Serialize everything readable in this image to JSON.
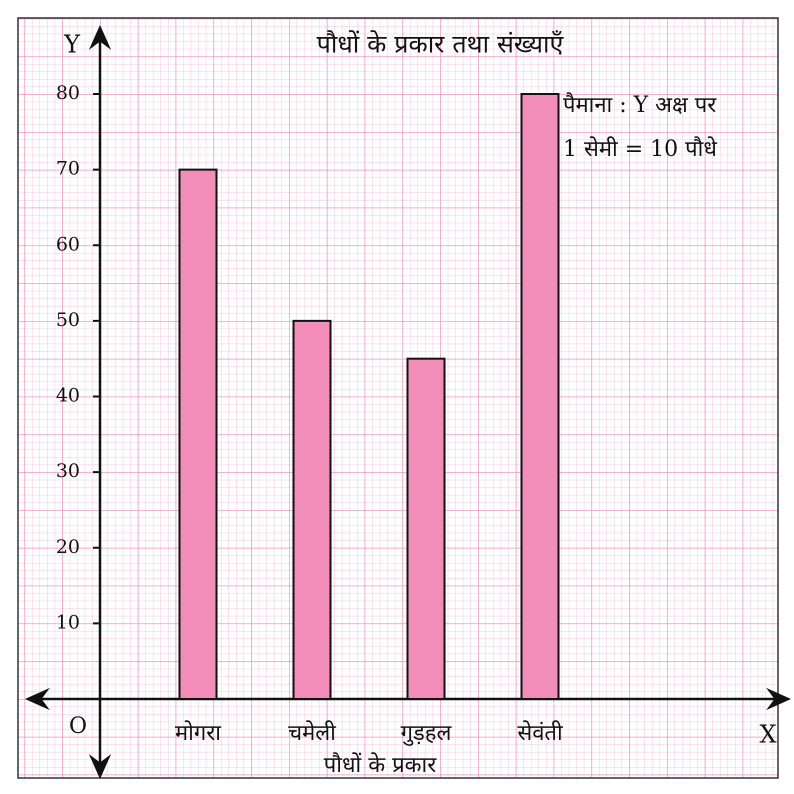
{
  "chart_data": {
    "type": "bar",
    "title": "पौधों के प्रकार तथा संख्याएँ",
    "x_label": "पौधों के प्रकार",
    "y_axis_name": "Y",
    "x_axis_name": "X",
    "origin_label": "O",
    "scale_note": [
      "पैमाना : Y अक्ष पर",
      "1 सेमी = 10 पौधे"
    ],
    "categories": [
      "मोगरा",
      "चमेली",
      "गुड़हल",
      "सेवंती"
    ],
    "values": [
      70,
      50,
      45,
      80
    ],
    "color": "#f28cb8",
    "ylim": [
      0,
      80
    ],
    "yticks": [
      10,
      20,
      30,
      40,
      50,
      60,
      70,
      80
    ],
    "grid": true
  }
}
